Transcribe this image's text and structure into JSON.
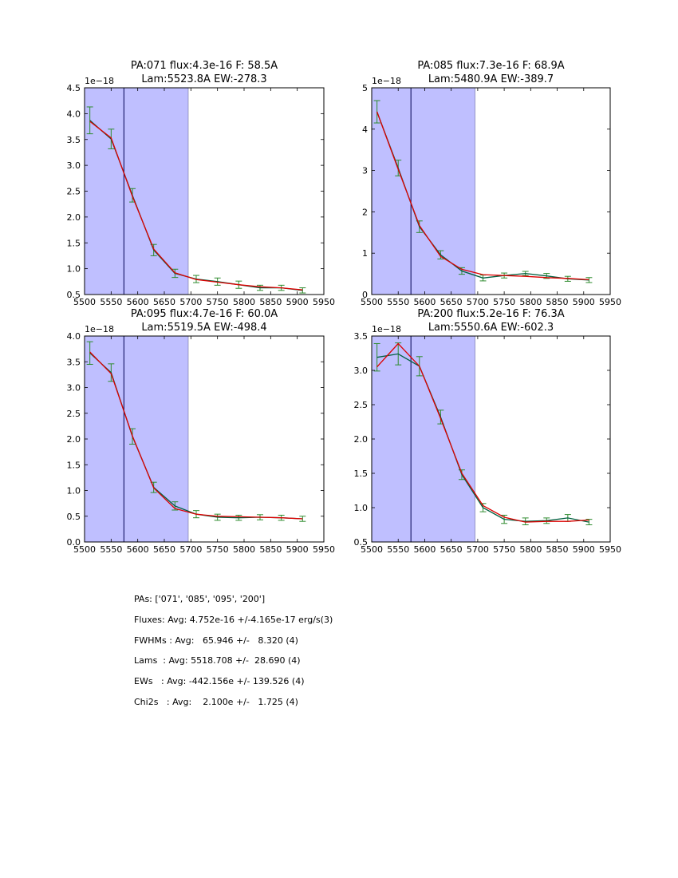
{
  "chart_data": [
    {
      "type": "line",
      "title": "PA:071 flux:4.3e-16 F: 58.5A\nLam:5523.8A EW:-278.3",
      "exponent_label": "1e−18",
      "xlim": [
        5500,
        5950
      ],
      "ylim": [
        0.5,
        4.5
      ],
      "xticks": [
        "5500",
        "5550",
        "5600",
        "5650",
        "5700",
        "5750",
        "5800",
        "5850",
        "5900",
        "5950"
      ],
      "yticks": [
        "0.5",
        "1.0",
        "1.5",
        "2.0",
        "2.5",
        "3.0",
        "3.5",
        "4.0",
        "4.5"
      ],
      "shaded_band": [
        5500,
        5695
      ],
      "vline": 5574,
      "x": [
        5510,
        5550,
        5590,
        5630,
        5670,
        5710,
        5750,
        5790,
        5830,
        5870,
        5910
      ],
      "series": [
        {
          "color": "#006040",
          "values": [
            3.87,
            3.51,
            2.42,
            1.36,
            0.91,
            0.8,
            0.75,
            0.69,
            0.63,
            0.63,
            0.58
          ]
        },
        {
          "color": "#dd0000",
          "values": [
            3.85,
            3.53,
            2.4,
            1.38,
            0.92,
            0.79,
            0.74,
            0.69,
            0.65,
            0.63,
            0.59
          ]
        }
      ],
      "errors": [
        0.26,
        0.19,
        0.13,
        0.11,
        0.08,
        0.07,
        0.07,
        0.07,
        0.05,
        0.05,
        0.05
      ]
    },
    {
      "type": "line",
      "title": "PA:085 flux:7.3e-16 F: 68.9A\nLam:5480.9A EW:-389.7",
      "exponent_label": "1e−18",
      "xlim": [
        5500,
        5950
      ],
      "ylim": [
        0,
        5
      ],
      "xticks": [
        "5500",
        "5550",
        "5600",
        "5650",
        "5700",
        "5750",
        "5800",
        "5850",
        "5900",
        "5950"
      ],
      "yticks": [
        "0",
        "1",
        "2",
        "3",
        "4",
        "5"
      ],
      "shaded_band": [
        5500,
        5695
      ],
      "vline": 5574,
      "x": [
        5510,
        5550,
        5590,
        5630,
        5670,
        5710,
        5750,
        5790,
        5830,
        5870,
        5910
      ],
      "series": [
        {
          "color": "#006040",
          "values": [
            4.42,
            3.06,
            1.64,
            0.96,
            0.57,
            0.4,
            0.46,
            0.51,
            0.45,
            0.38,
            0.35
          ]
        },
        {
          "color": "#dd0000",
          "values": [
            4.42,
            3.03,
            1.67,
            0.92,
            0.61,
            0.48,
            0.46,
            0.44,
            0.41,
            0.39,
            0.36
          ]
        }
      ],
      "errors": [
        0.27,
        0.19,
        0.14,
        0.1,
        0.08,
        0.07,
        0.06,
        0.05,
        0.06,
        0.06,
        0.06
      ]
    },
    {
      "type": "line",
      "title": "PA:095 flux:4.7e-16 F: 60.0A\nLam:5519.5A EW:-498.4",
      "exponent_label": "1e−18",
      "xlim": [
        5500,
        5950
      ],
      "ylim": [
        0.0,
        4.0
      ],
      "xticks": [
        "5500",
        "5550",
        "5600",
        "5650",
        "5700",
        "5750",
        "5800",
        "5850",
        "5900",
        "5950"
      ],
      "yticks": [
        "0.0",
        "0.5",
        "1.0",
        "1.5",
        "2.0",
        "2.5",
        "3.0",
        "3.5",
        "4.0"
      ],
      "shaded_band": [
        5500,
        5695
      ],
      "vline": 5574,
      "x": [
        5510,
        5550,
        5590,
        5630,
        5670,
        5710,
        5750,
        5790,
        5830,
        5870,
        5910
      ],
      "series": [
        {
          "color": "#006040",
          "values": [
            3.67,
            3.29,
            2.05,
            1.06,
            0.7,
            0.54,
            0.48,
            0.47,
            0.48,
            0.47,
            0.45
          ]
        },
        {
          "color": "#dd0000",
          "values": [
            3.69,
            3.27,
            2.06,
            1.05,
            0.65,
            0.54,
            0.5,
            0.49,
            0.48,
            0.47,
            0.45
          ]
        }
      ],
      "errors": [
        0.22,
        0.17,
        0.15,
        0.1,
        0.08,
        0.07,
        0.06,
        0.05,
        0.05,
        0.05,
        0.05
      ]
    },
    {
      "type": "line",
      "title": "PA:200 flux:5.2e-16 F: 76.3A\nLam:5550.6A EW:-602.3",
      "exponent_label": "1e−18",
      "xlim": [
        5500,
        5950
      ],
      "ylim": [
        0.5,
        3.5
      ],
      "xticks": [
        "5500",
        "5550",
        "5600",
        "5650",
        "5700",
        "5750",
        "5800",
        "5850",
        "5900",
        "5950"
      ],
      "yticks": [
        "0.5",
        "1.0",
        "1.5",
        "2.0",
        "2.5",
        "3.0",
        "3.5"
      ],
      "shaded_band": [
        5500,
        5695
      ],
      "vline": 5574,
      "x": [
        5510,
        5550,
        5590,
        5630,
        5670,
        5710,
        5750,
        5790,
        5830,
        5870,
        5910
      ],
      "series": [
        {
          "color": "#006040",
          "values": [
            3.19,
            3.24,
            3.06,
            2.32,
            1.48,
            1.0,
            0.83,
            0.8,
            0.81,
            0.85,
            0.79
          ]
        },
        {
          "color": "#dd0000",
          "values": [
            3.05,
            3.39,
            3.06,
            2.3,
            1.5,
            1.03,
            0.86,
            0.79,
            0.8,
            0.8,
            0.82
          ]
        }
      ],
      "errors": [
        0.2,
        0.16,
        0.14,
        0.1,
        0.07,
        0.06,
        0.06,
        0.05,
        0.04,
        0.05,
        0.04
      ]
    }
  ],
  "errorbar_color": "#2e8b2e",
  "band_color": "#bfbfff",
  "stats": {
    "pas": "PAs: ['071', '085', '095', '200']",
    "fluxes": "Fluxes: Avg: 4.752e-16 +/-4.165e-17 erg/s(3)",
    "fwhms": "FWHMs : Avg:   65.946 +/-   8.320 (4)",
    "lams": "Lams  : Avg: 5518.708 +/-  28.690 (4)",
    "ews": "EWs   : Avg: -442.156e +/- 139.526 (4)",
    "chi2s": "Chi2s   : Avg:    2.100e +/-   1.725 (4)"
  }
}
